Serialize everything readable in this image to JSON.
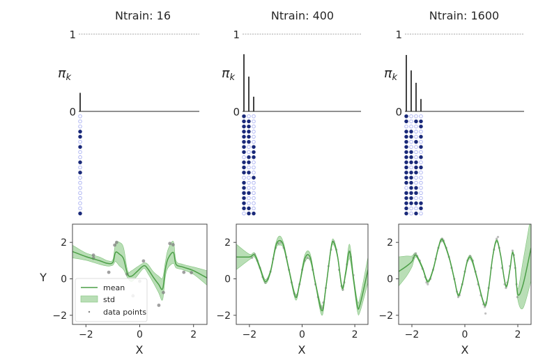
{
  "chart_data": [
    {
      "type": "bar",
      "title": "Ntrain: 16",
      "ylabel": "π_k",
      "ylim": [
        0,
        1
      ],
      "yticks": [
        "0",
        "1"
      ],
      "reference_line": 1,
      "values": [
        0.24
      ],
      "assignment_matrix": [
        [
          0
        ],
        [
          0
        ],
        [
          0
        ],
        [
          1
        ],
        [
          1
        ],
        [
          0
        ],
        [
          1
        ],
        [
          0
        ],
        [
          0
        ],
        [
          1
        ],
        [
          0
        ],
        [
          1
        ],
        [
          0
        ],
        [
          0
        ],
        [
          0
        ],
        [
          0
        ],
        [
          0
        ],
        [
          0
        ],
        [
          0
        ],
        [
          1
        ]
      ]
    },
    {
      "type": "bar",
      "title": "Ntrain: 400",
      "ylabel": "π_k",
      "ylim": [
        0,
        1
      ],
      "yticks": [
        "0",
        "1"
      ],
      "reference_line": 1,
      "values": [
        0.74,
        0.45,
        0.19
      ],
      "assignment_matrix": [
        [
          1,
          0,
          0
        ],
        [
          1,
          1,
          0
        ],
        [
          1,
          1,
          0
        ],
        [
          1,
          1,
          0
        ],
        [
          1,
          1,
          0
        ],
        [
          1,
          1,
          0
        ],
        [
          1,
          0,
          1
        ],
        [
          1,
          0,
          1
        ],
        [
          0,
          1,
          1
        ],
        [
          1,
          1,
          0
        ],
        [
          1,
          0,
          0
        ],
        [
          1,
          1,
          0
        ],
        [
          0,
          0,
          1
        ],
        [
          1,
          0,
          0
        ],
        [
          1,
          0,
          0
        ],
        [
          1,
          1,
          0
        ],
        [
          1,
          0,
          0
        ],
        [
          1,
          0,
          0
        ],
        [
          1,
          1,
          0
        ],
        [
          0,
          1,
          1
        ]
      ]
    },
    {
      "type": "bar",
      "title": "Ntrain: 1600",
      "ylabel": "π_k",
      "ylim": [
        0,
        1
      ],
      "yticks": [
        "0",
        "1"
      ],
      "reference_line": 1,
      "values": [
        0.73,
        0.53,
        0.37,
        0.16
      ],
      "assignment_matrix": [
        [
          1,
          0,
          0,
          0
        ],
        [
          1,
          0,
          1,
          1
        ],
        [
          0,
          0,
          0,
          1
        ],
        [
          1,
          1,
          0,
          0
        ],
        [
          1,
          1,
          0,
          1
        ],
        [
          1,
          0,
          1,
          0
        ],
        [
          1,
          0,
          0,
          1
        ],
        [
          1,
          1,
          0,
          0
        ],
        [
          1,
          1,
          0,
          1
        ],
        [
          1,
          1,
          1,
          0
        ],
        [
          1,
          0,
          1,
          1
        ],
        [
          1,
          1,
          1,
          0
        ],
        [
          1,
          1,
          0,
          0
        ],
        [
          1,
          1,
          0,
          0
        ],
        [
          0,
          1,
          1,
          0
        ],
        [
          1,
          1,
          1,
          0
        ],
        [
          1,
          1,
          0,
          0
        ],
        [
          1,
          1,
          1,
          1
        ],
        [
          1,
          0,
          0,
          1
        ],
        [
          1,
          0,
          1,
          0
        ]
      ]
    },
    {
      "type": "line",
      "xlabel": "X",
      "ylabel": "Y",
      "xlim": [
        -2.5,
        2.5
      ],
      "ylim": [
        -2.5,
        3.0
      ],
      "xticks": [
        -2,
        0,
        2
      ],
      "yticks": [
        -2,
        0,
        2
      ],
      "legend": {
        "placement": "lower-left",
        "entries": [
          "mean",
          "std",
          "data points"
        ]
      },
      "mean": {
        "x": [
          -2.5,
          -2,
          -1.5,
          -1.2,
          -1.0,
          -0.9,
          -0.75,
          -0.6,
          -0.45,
          -0.3,
          -0.1,
          0.15,
          0.3,
          0.5,
          0.7,
          0.85,
          0.95,
          1.05,
          1.25,
          1.35,
          1.6,
          2.0,
          2.5
        ],
        "y": [
          1.5,
          1.22,
          1.0,
          0.85,
          0.9,
          1.45,
          1.35,
          1.1,
          0.25,
          0.15,
          0.4,
          0.72,
          0.55,
          0.1,
          -0.3,
          -0.55,
          0.5,
          1.1,
          1.45,
          0.8,
          0.65,
          0.45,
          0.05
        ]
      },
      "std": [
        0.35,
        0.2,
        0.2,
        0.15,
        0.15,
        0.5,
        0.65,
        0.6,
        0.2,
        0.3,
        0.25,
        0.15,
        0.25,
        0.3,
        0.45,
        0.6,
        0.4,
        0.5,
        0.6,
        0.2,
        0.15,
        0.2,
        0.4
      ],
      "points": [
        [
          -1.72,
          1.3
        ],
        [
          -1.72,
          1.13
        ],
        [
          -1.15,
          0.36
        ],
        [
          -0.93,
          1.85
        ],
        [
          -0.86,
          2.0
        ],
        [
          -0.47,
          0.26
        ],
        [
          -0.25,
          -0.93
        ],
        [
          0.0,
          -0.13
        ],
        [
          0.14,
          0.98
        ],
        [
          0.71,
          -1.45
        ],
        [
          0.88,
          -0.75
        ],
        [
          1.12,
          1.94
        ],
        [
          1.24,
          1.87
        ],
        [
          1.64,
          0.36
        ],
        [
          1.92,
          0.34
        ]
      ]
    },
    {
      "type": "line",
      "xlabel": "X",
      "xlim": [
        -2.5,
        2.5
      ],
      "ylim": [
        -2.5,
        3.0
      ],
      "xticks": [
        -2,
        0,
        2
      ],
      "yticks": [
        -2,
        0,
        2
      ],
      "mean": {
        "x": [
          -2.5,
          -2,
          -1.8,
          -1.6,
          -1.4,
          -1.2,
          -1.0,
          -0.85,
          -0.7,
          -0.5,
          -0.25,
          -0.1,
          0.1,
          0.3,
          0.5,
          0.75,
          0.9,
          1.1,
          1.2,
          1.35,
          1.52,
          1.65,
          1.8,
          1.95,
          2.1,
          2.2,
          2.5
        ],
        "y": [
          1.2,
          1.2,
          1.3,
          0.6,
          -0.15,
          0.4,
          1.8,
          2.1,
          1.8,
          0.5,
          -1.0,
          -0.3,
          1.1,
          1.2,
          -0.2,
          -1.75,
          -0.5,
          1.7,
          2.0,
          1.2,
          -0.5,
          0.3,
          1.5,
          0.0,
          -1.5,
          -1.4,
          0.5
        ]
      },
      "std": [
        0.7,
        0.15,
        0.12,
        0.1,
        0.12,
        0.1,
        0.15,
        0.25,
        0.15,
        0.1,
        0.15,
        0.1,
        0.2,
        0.2,
        0.1,
        0.25,
        0.1,
        0.12,
        0.15,
        0.1,
        0.12,
        0.15,
        0.4,
        0.2,
        0.3,
        0.4,
        0.7
      ],
      "points": [
        [
          -1.9,
          1.15
        ],
        [
          -1.8,
          1.35
        ],
        [
          -1.7,
          1.0
        ],
        [
          -1.6,
          0.6
        ],
        [
          -1.5,
          0.1
        ],
        [
          -1.4,
          -0.2
        ],
        [
          -1.3,
          0.0
        ],
        [
          -1.2,
          0.4
        ],
        [
          -1.1,
          1.1
        ],
        [
          -1.0,
          1.7
        ],
        [
          -0.9,
          1.95
        ],
        [
          -0.8,
          2.0
        ],
        [
          -0.7,
          1.7
        ],
        [
          -0.6,
          1.2
        ],
        [
          -0.5,
          0.5
        ],
        [
          -0.4,
          -0.2
        ],
        [
          -0.3,
          -0.8
        ],
        [
          -0.2,
          -0.9
        ],
        [
          -0.1,
          -0.3
        ],
        [
          0.0,
          0.5
        ],
        [
          0.1,
          1.0
        ],
        [
          0.2,
          1.15
        ],
        [
          0.3,
          1.1
        ],
        [
          0.4,
          0.5
        ],
        [
          0.5,
          -0.3
        ],
        [
          0.6,
          -1.0
        ],
        [
          0.7,
          -1.5
        ],
        [
          0.75,
          -1.6
        ],
        [
          0.8,
          -1.3
        ],
        [
          0.9,
          -0.5
        ],
        [
          1.0,
          0.7
        ],
        [
          1.1,
          1.6
        ],
        [
          1.2,
          2.05
        ],
        [
          1.3,
          1.6
        ],
        [
          1.4,
          0.5
        ],
        [
          1.5,
          -0.4
        ],
        [
          1.55,
          -0.6
        ],
        [
          1.6,
          -0.2
        ],
        [
          1.7,
          0.8
        ],
        [
          1.8,
          1.5
        ],
        [
          1.85,
          1.2
        ],
        [
          1.95,
          0.2
        ]
      ]
    },
    {
      "type": "line",
      "xlabel": "X",
      "xlim": [
        -2.5,
        2.5
      ],
      "ylim": [
        -2.5,
        3.0
      ],
      "xticks": [
        -2,
        0,
        2
      ],
      "yticks": [
        -2,
        0,
        2
      ],
      "mean": {
        "x": [
          -2.5,
          -2.2,
          -2,
          -1.85,
          -1.6,
          -1.4,
          -1.2,
          -1.0,
          -0.85,
          -0.6,
          -0.4,
          -0.25,
          -0.1,
          0.1,
          0.25,
          0.45,
          0.75,
          0.9,
          1.05,
          1.2,
          1.35,
          1.55,
          1.7,
          1.8,
          1.9,
          2.0,
          2.2,
          2.5
        ],
        "y": [
          0.4,
          0.7,
          0.95,
          1.3,
          0.6,
          -0.15,
          0.5,
          1.7,
          2.15,
          1.2,
          0.0,
          -0.9,
          -0.3,
          1.0,
          1.1,
          0.1,
          -1.45,
          -0.5,
          1.2,
          2.1,
          1.3,
          -0.4,
          0.5,
          1.45,
          0.7,
          -0.85,
          -0.3,
          1.7
        ]
      },
      "std": [
        0.8,
        0.55,
        0.3,
        0.1,
        0.08,
        0.08,
        0.08,
        0.08,
        0.08,
        0.08,
        0.08,
        0.08,
        0.08,
        0.08,
        0.12,
        0.08,
        0.08,
        0.08,
        0.08,
        0.08,
        0.08,
        0.08,
        0.08,
        0.08,
        0.1,
        0.3,
        1.3,
        1.8
      ],
      "points": [
        [
          -1.95,
          1.15
        ],
        [
          -1.9,
          1.3
        ],
        [
          -1.85,
          1.4
        ],
        [
          -1.8,
          1.25
        ],
        [
          -1.7,
          1.0
        ],
        [
          -1.6,
          0.55
        ],
        [
          -1.5,
          0.1
        ],
        [
          -1.45,
          -0.2
        ],
        [
          -1.4,
          -0.3
        ],
        [
          -1.3,
          0.0
        ],
        [
          -1.2,
          0.5
        ],
        [
          -1.1,
          1.1
        ],
        [
          -1.0,
          1.7
        ],
        [
          -0.9,
          2.05
        ],
        [
          -0.85,
          2.2
        ],
        [
          -0.8,
          2.1
        ],
        [
          -0.7,
          1.7
        ],
        [
          -0.6,
          1.2
        ],
        [
          -0.5,
          0.6
        ],
        [
          -0.4,
          0.0
        ],
        [
          -0.3,
          -0.7
        ],
        [
          -0.25,
          -1.0
        ],
        [
          -0.2,
          -0.9
        ],
        [
          -0.1,
          -0.3
        ],
        [
          0.0,
          0.4
        ],
        [
          0.1,
          1.0
        ],
        [
          0.2,
          1.25
        ],
        [
          0.3,
          1.0
        ],
        [
          0.4,
          0.4
        ],
        [
          0.5,
          -0.3
        ],
        [
          0.6,
          -0.9
        ],
        [
          0.7,
          -1.4
        ],
        [
          0.75,
          -1.55
        ],
        [
          0.78,
          -1.9
        ],
        [
          0.8,
          -1.3
        ],
        [
          0.9,
          -0.5
        ],
        [
          1.0,
          0.6
        ],
        [
          1.1,
          1.6
        ],
        [
          1.2,
          2.2
        ],
        [
          1.25,
          2.3
        ],
        [
          1.3,
          1.7
        ],
        [
          1.4,
          0.6
        ],
        [
          1.5,
          -0.3
        ],
        [
          1.55,
          -0.5
        ],
        [
          1.6,
          -0.2
        ],
        [
          1.7,
          0.7
        ],
        [
          1.8,
          1.55
        ],
        [
          1.85,
          1.3
        ],
        [
          1.9,
          0.6
        ],
        [
          1.95,
          -0.3
        ],
        [
          1.98,
          -1.0
        ]
      ]
    }
  ],
  "colors": {
    "mean": "#4c9f47",
    "std": "#7fc27a",
    "points": "#808080",
    "filled_dot": "#1b2a7a",
    "empty_dot": "#a9b0f2"
  }
}
